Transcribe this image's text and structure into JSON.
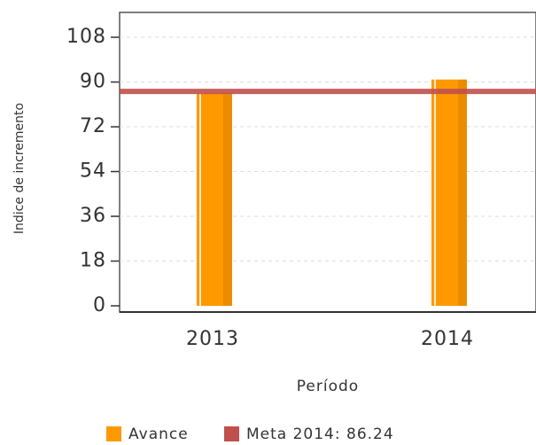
{
  "chart_data": {
    "type": "bar",
    "x_label": "Período",
    "y_label": "Indice de incremento",
    "categories": [
      "2013",
      "2014"
    ],
    "series": [
      {
        "name": "Avance",
        "color": "#ff9900",
        "values": [
          85.5,
          91
        ]
      }
    ],
    "reference_line": {
      "name": "Meta 2014: 86.24",
      "value": 86.24,
      "color": "#c0504d"
    },
    "ylim": [
      0,
      118
    ],
    "yticks": [
      0,
      18,
      36,
      54,
      72,
      90,
      108
    ],
    "grid": true
  }
}
